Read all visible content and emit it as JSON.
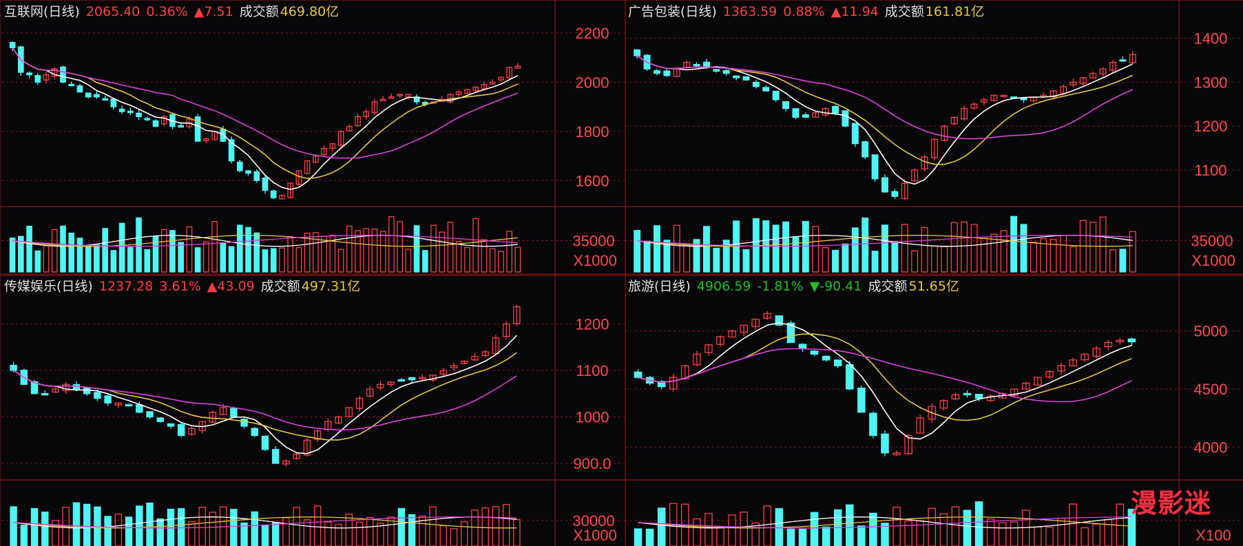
{
  "colors": {
    "up": "#ff4040",
    "down": "#4ff4f4",
    "ma5": "#ffffff",
    "ma10": "#e8c83a",
    "ma20": "#e040e0",
    "grid": "#8a1414",
    "axis": "#ff4a4a"
  },
  "volume_unit_label": "X1000",
  "panels": [
    {
      "id": "p1",
      "name": "互联网(日线)",
      "price": "2065.40",
      "pct": "0.36%",
      "chg": "▲7.51",
      "dir": "up",
      "amt_label": "成交额",
      "amt": "469.80亿",
      "yticks": [
        "2200",
        "2000",
        "1800",
        "1600"
      ],
      "vol_tick": "35000",
      "vol_unit": "X1000"
    },
    {
      "id": "p2",
      "name": "广告包装(日线)",
      "price": "1363.59",
      "pct": "0.88%",
      "chg": "▲11.94",
      "dir": "up",
      "amt_label": "成交额",
      "amt": "161.81亿",
      "yticks": [
        "1400",
        "1300",
        "1200",
        "1100"
      ],
      "vol_tick": "35000",
      "vol_unit": "X1000"
    },
    {
      "id": "p3",
      "name": "传媒娱乐(日线)",
      "price": "1237.28",
      "pct": "3.61%",
      "chg": "▲43.09",
      "dir": "up",
      "amt_label": "成交额",
      "amt": "497.31亿",
      "yticks": [
        "1200",
        "1100",
        "1000",
        "900.0"
      ],
      "vol_tick": "30000",
      "vol_unit": "X1000"
    },
    {
      "id": "p4",
      "name": "旅游(日线)",
      "price": "4906.59",
      "pct": "-1.81%",
      "chg": "▼-90.41",
      "dir": "down",
      "amt_label": "成交额",
      "amt": "51.65亿",
      "yticks": [
        "5000",
        "4500",
        "4000"
      ],
      "vol_tick": "",
      "vol_unit": "X100"
    }
  ],
  "chart_data": [
    {
      "type": "candlestick",
      "title": "互联网(日线)",
      "ylim": [
        1500,
        2250
      ],
      "yticks": [
        2200,
        2000,
        1800,
        1600
      ],
      "close_path": [
        2140,
        2040,
        2030,
        2000,
        2030,
        2055,
        2000,
        1990,
        1960,
        1940,
        1940,
        1930,
        1900,
        1880,
        1880,
        1860,
        1850,
        1820,
        1860,
        1820,
        1820,
        1850,
        1760,
        1770,
        1800,
        1760,
        1680,
        1640,
        1630,
        1600,
        1560,
        1530,
        1540,
        1590,
        1640,
        1680,
        1700,
        1730,
        1750,
        1800,
        1820,
        1860,
        1880,
        1920,
        1930,
        1940,
        1950,
        1950,
        1920,
        1910,
        1920,
        1930,
        1950,
        1960,
        1970,
        1980,
        1990,
        2000,
        2020,
        2060,
        2065
      ]
    },
    {
      "type": "candlestick",
      "title": "广告包装(日线)",
      "ylim": [
        1020,
        1440
      ],
      "yticks": [
        1400,
        1300,
        1200,
        1100
      ],
      "close_path": [
        1360,
        1330,
        1320,
        1315,
        1330,
        1345,
        1340,
        1335,
        1325,
        1320,
        1310,
        1305,
        1290,
        1280,
        1260,
        1240,
        1220,
        1220,
        1230,
        1240,
        1230,
        1200,
        1160,
        1130,
        1080,
        1050,
        1040,
        1070,
        1100,
        1130,
        1170,
        1200,
        1220,
        1240,
        1250,
        1260,
        1270,
        1270,
        1265,
        1260,
        1265,
        1270,
        1280,
        1290,
        1300,
        1310,
        1320,
        1330,
        1345,
        1350,
        1363
      ]
    },
    {
      "type": "candlestick",
      "title": "传媒娱乐(日线)",
      "ylim": [
        860,
        1260
      ],
      "yticks": [
        1200,
        1100,
        1000,
        900
      ],
      "close_path": [
        1100,
        1070,
        1050,
        1050,
        1060,
        1070,
        1060,
        1050,
        1040,
        1030,
        1030,
        1025,
        1010,
        1000,
        990,
        980,
        960,
        975,
        990,
        1010,
        1020,
        1000,
        980,
        960,
        930,
        900,
        905,
        920,
        950,
        970,
        990,
        1000,
        1020,
        1040,
        1060,
        1070,
        1075,
        1080,
        1080,
        1085,
        1090,
        1100,
        1110,
        1120,
        1130,
        1140,
        1170,
        1200,
        1237
      ]
    },
    {
      "type": "candlestick",
      "title": "旅游(日线)",
      "ylim": [
        3700,
        5300
      ],
      "yticks": [
        5000,
        4500,
        4000
      ],
      "close_path": [
        4600,
        4550,
        4520,
        4600,
        4700,
        4800,
        4880,
        4950,
        5000,
        5050,
        5100,
        5150,
        5050,
        4900,
        4850,
        4800,
        4750,
        4700,
        4500,
        4300,
        4100,
        3950,
        3950,
        4100,
        4250,
        4350,
        4400,
        4450,
        4450,
        4420,
        4440,
        4460,
        4500,
        4550,
        4600,
        4650,
        4700,
        4750,
        4800,
        4850,
        4900,
        4920,
        4906
      ]
    }
  ]
}
